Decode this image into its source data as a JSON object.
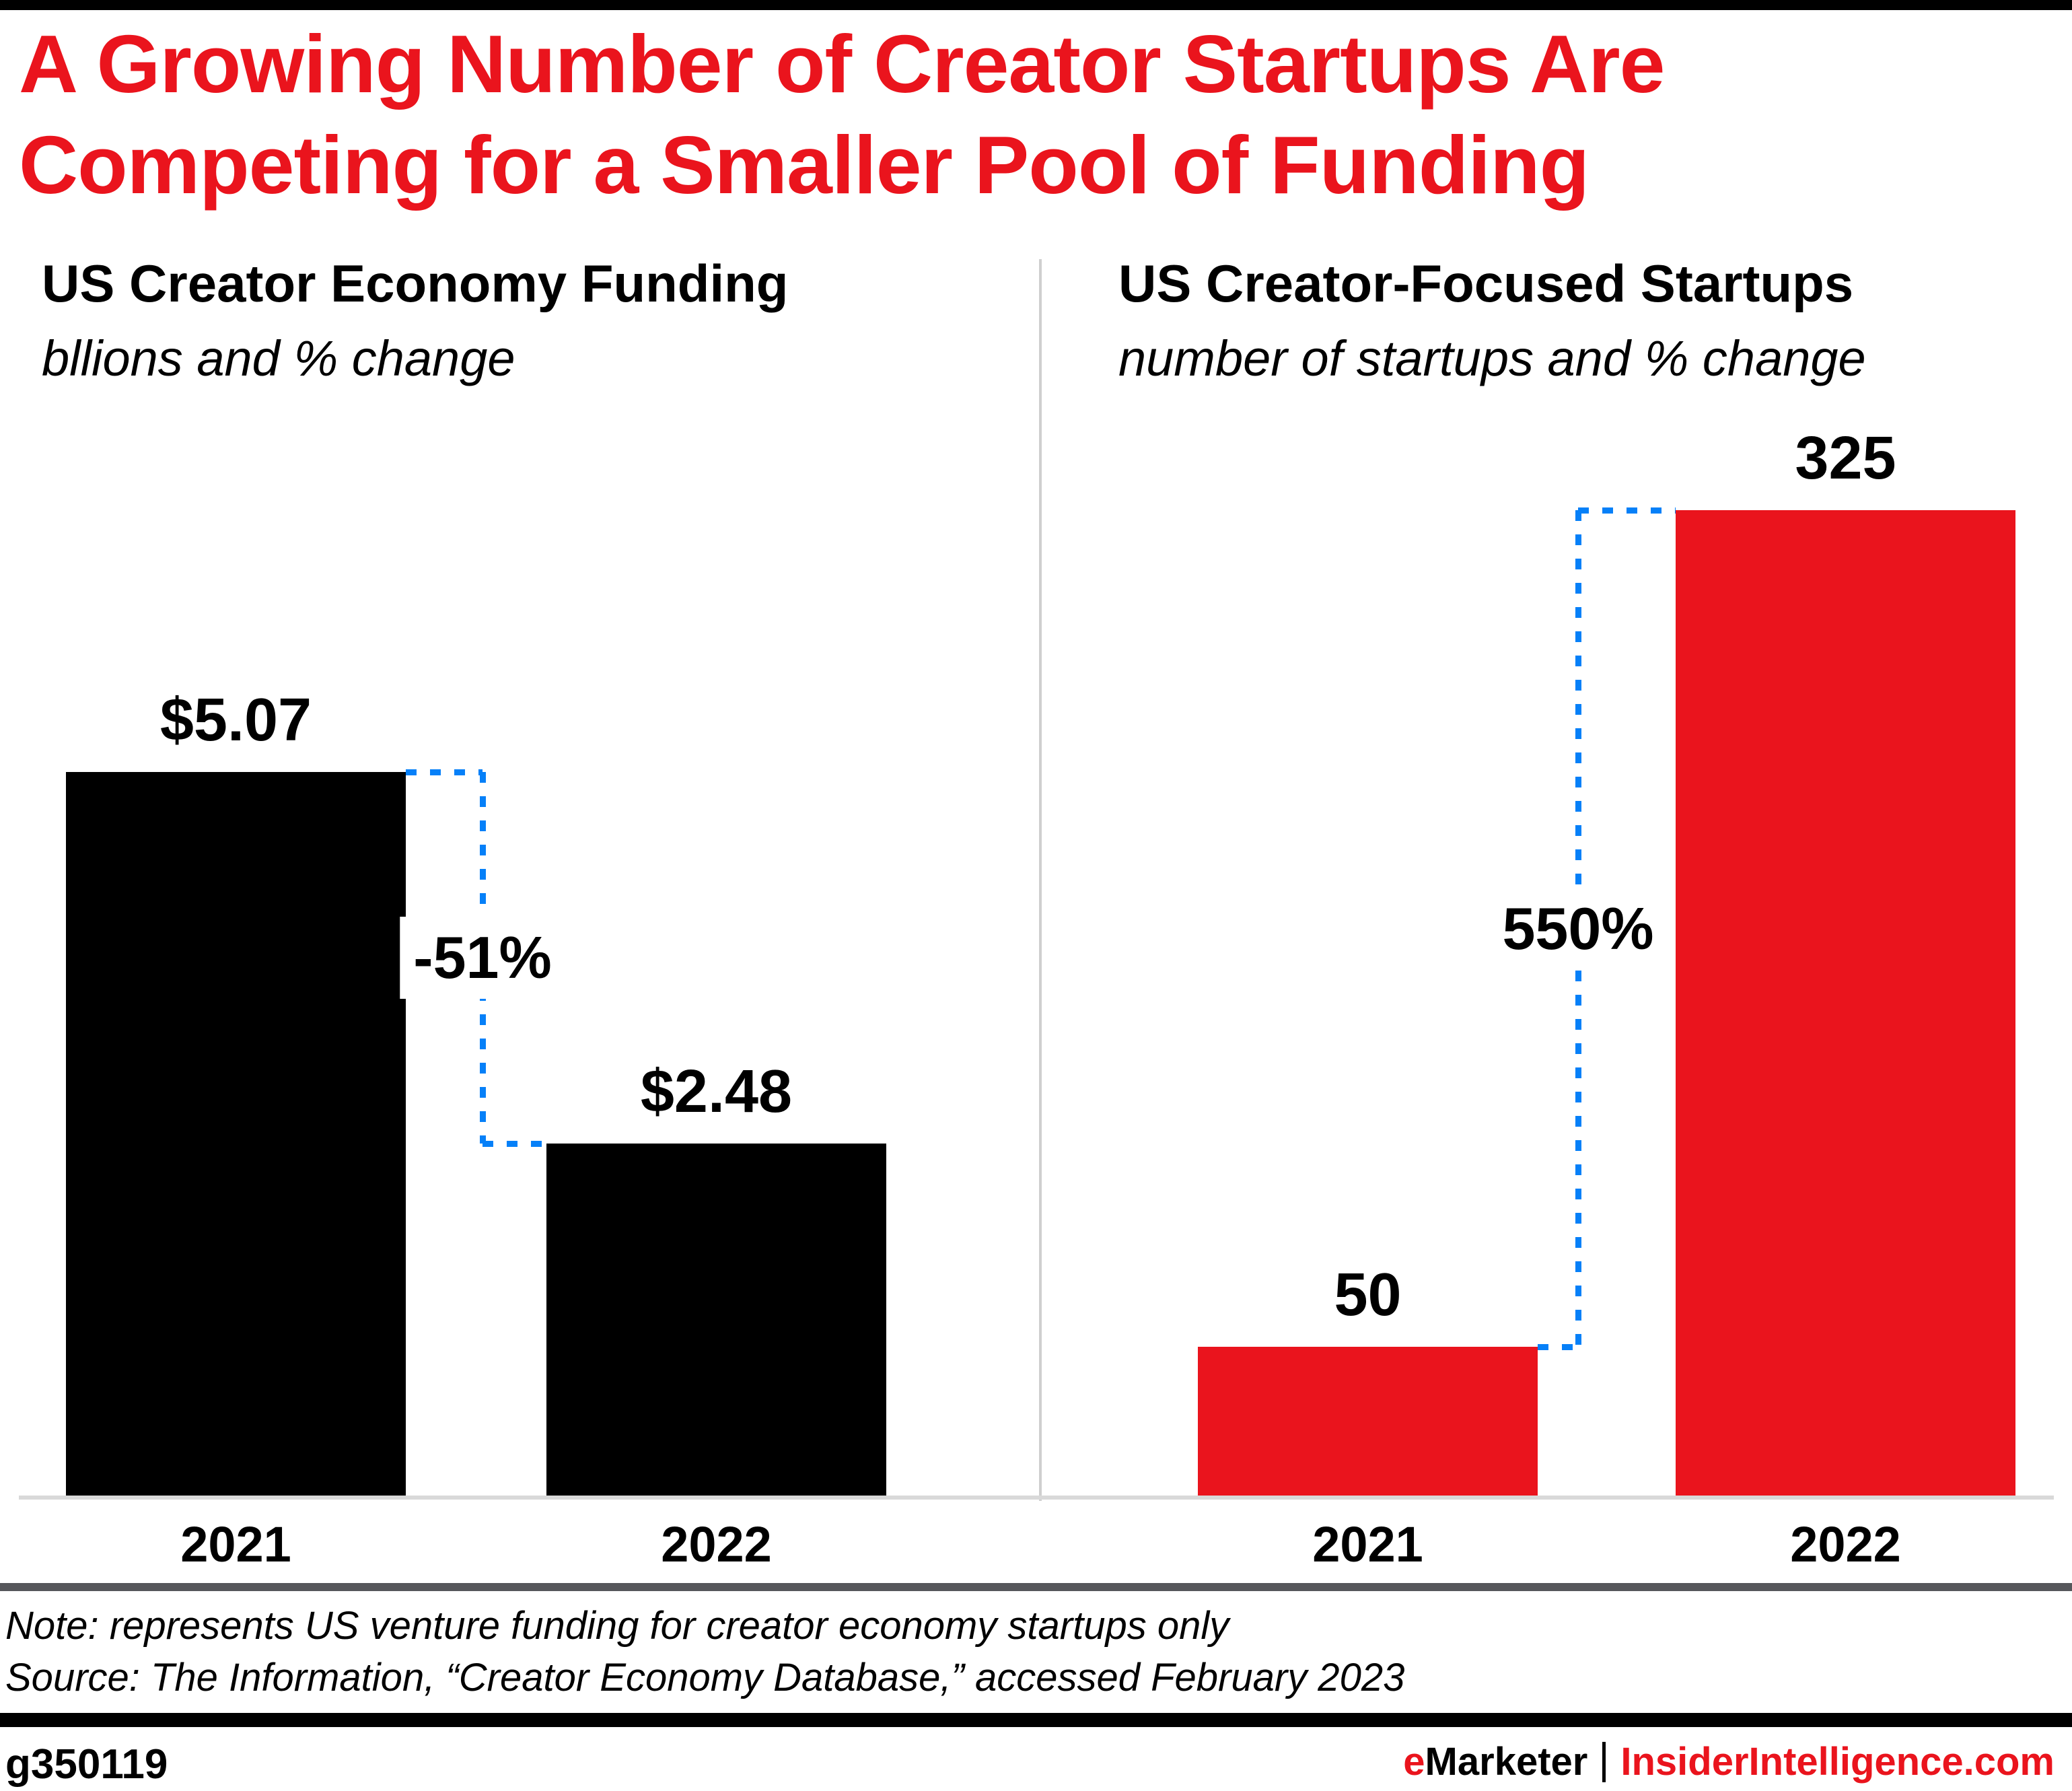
{
  "header": {
    "title_line1": "A Growing Number of Creator Startups Are",
    "title_line2": "Competing for a Smaller Pool of Funding",
    "title_color": "#EA141D"
  },
  "chart_data": [
    {
      "type": "bar",
      "title": "US Creator Economy Funding",
      "subtitle": "bllions and % change",
      "categories": [
        "2021",
        "2022"
      ],
      "values": [
        5.07,
        2.48
      ],
      "value_labels": [
        "$5.07",
        "$2.48"
      ],
      "pct_change_label": "-51%",
      "bar_color": "#000000",
      "ylim": [
        0,
        5.5
      ],
      "grid": false,
      "legend": false
    },
    {
      "type": "bar",
      "title": "US Creator-Focused Startups",
      "subtitle": "number of startups and % change",
      "categories": [
        "2021",
        "2022"
      ],
      "values": [
        50,
        325
      ],
      "value_labels": [
        "50",
        "325"
      ],
      "pct_change_label": "550%",
      "bar_color": "#EA141D",
      "ylim": [
        0,
        350
      ],
      "grid": false,
      "legend": false
    }
  ],
  "connector_color": "#0680F8",
  "notes": {
    "note": "Note: represents US venture funding for creator economy startups only",
    "source": "Source: The Information, “Creator Economy Database,” accessed February 2023"
  },
  "footer": {
    "chart_id": "g350119",
    "brand_accent": "e",
    "brand_rest": "Marketer",
    "brand_site": "InsiderIntelligence.com",
    "brand_red": "#EA141D"
  }
}
